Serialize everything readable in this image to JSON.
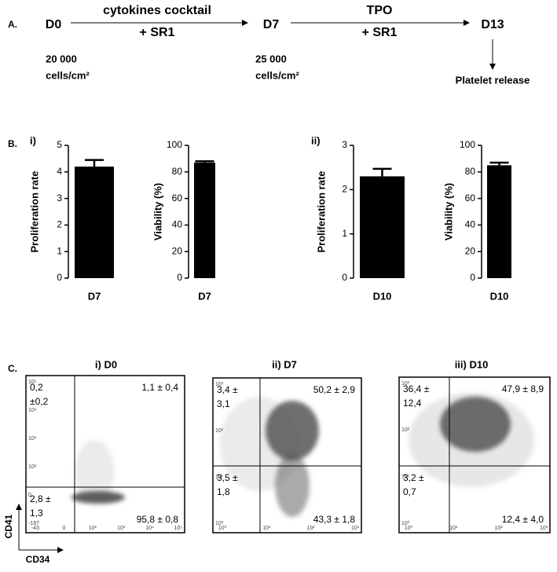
{
  "panel_a": {
    "label": "A.",
    "days": [
      "D0",
      "D7",
      "D13"
    ],
    "arrows": [
      {
        "top": "cytokines cocktail",
        "bottom": "+ SR1"
      },
      {
        "top": "TPO",
        "bottom": "+ SR1"
      }
    ],
    "densities": [
      [
        "20 000",
        "cells/cm²"
      ],
      [
        "25 000",
        "cells/cm²"
      ]
    ],
    "release": "Platelet release"
  },
  "panel_b": {
    "label": "B.",
    "subpanels": [
      "i)",
      "ii)"
    ]
  },
  "chart_data": [
    {
      "type": "bar",
      "ylabel": "Proliferation rate",
      "categories": [
        "D7"
      ],
      "values": [
        4.2
      ],
      "errors": [
        0.25
      ],
      "ylim": [
        0,
        5
      ],
      "yticks": [
        0,
        1,
        2,
        3,
        4,
        5
      ],
      "color": "#000000"
    },
    {
      "type": "bar",
      "ylabel": "Viability (%)",
      "categories": [
        "D7"
      ],
      "values": [
        87
      ],
      "errors": [
        1
      ],
      "ylim": [
        0,
        100
      ],
      "yticks": [
        0,
        20,
        40,
        60,
        80,
        100
      ],
      "color": "#000000"
    },
    {
      "type": "bar",
      "ylabel": "Proliferation rate",
      "categories": [
        "D10"
      ],
      "values": [
        2.3
      ],
      "errors": [
        0.17
      ],
      "ylim": [
        0,
        3
      ],
      "yticks": [
        0,
        1,
        2,
        3
      ],
      "color": "#000000"
    },
    {
      "type": "bar",
      "ylabel": "Viability (%)",
      "categories": [
        "D10"
      ],
      "values": [
        85
      ],
      "errors": [
        2
      ],
      "ylim": [
        0,
        100
      ],
      "yticks": [
        0,
        20,
        40,
        60,
        80,
        100
      ],
      "color": "#000000"
    }
  ],
  "panel_c": {
    "label": "C.",
    "x_axis": "CD34",
    "y_axis": "CD41",
    "plots": [
      {
        "title": "i) D0",
        "xticks": [
          "-43",
          "0",
          "10²",
          "10³",
          "10⁴",
          "10⁵"
        ],
        "yticks": [
          "-197",
          "0",
          "10²",
          "10³",
          "10⁴",
          "10⁵"
        ],
        "quadrants": {
          "ul": [
            "0,2",
            "±0,2"
          ],
          "ur": [
            "1,1 ± 0,4"
          ],
          "ll": [
            "2,8 ±",
            "1,3"
          ],
          "lr": [
            "95,8 ± 0,8"
          ]
        }
      },
      {
        "title": "ii) D7",
        "xticks": [
          "10⁰",
          "10¹",
          "10²",
          "10³"
        ],
        "yticks": [
          "10⁰",
          "10¹",
          "10²",
          "10³"
        ],
        "quadrants": {
          "ul": [
            "3,4 ±",
            "3,1"
          ],
          "ur": [
            "50,2 ± 2,9"
          ],
          "ll": [
            "3,5 ±",
            "1,8"
          ],
          "lr": [
            "43,3 ± 1,8"
          ]
        }
      },
      {
        "title": "iii) D10",
        "xticks": [
          "10⁰",
          "10¹",
          "10²",
          "10³"
        ],
        "yticks": [
          "10⁰",
          "10¹",
          "10²",
          "10³"
        ],
        "quadrants": {
          "ul": [
            "36,4 ±",
            "12,4"
          ],
          "ur": [
            "47,9 ± 8,9"
          ],
          "ll": [
            "3,2 ±",
            "0,7"
          ],
          "lr": [
            "12,4 ± 4,0"
          ]
        }
      }
    ]
  }
}
